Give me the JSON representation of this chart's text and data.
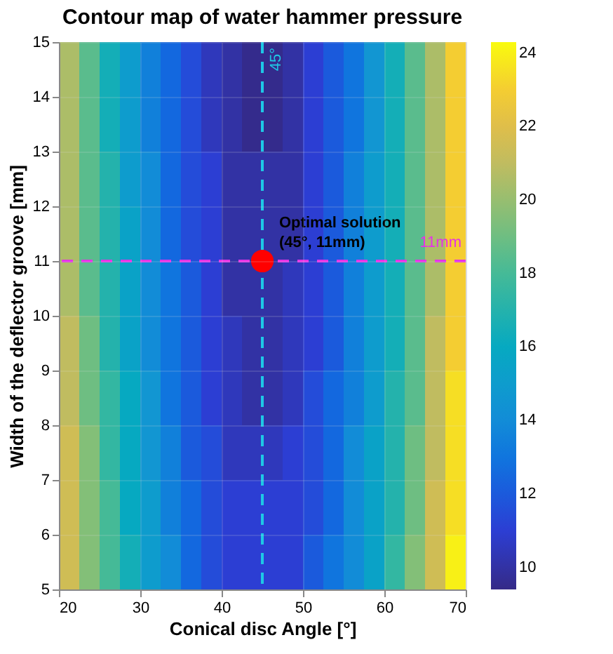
{
  "chart_data": {
    "type": "heatmap",
    "title": "Contour map of water hammer pressure",
    "xlabel": "Conical disc Angle [°]",
    "ylabel": "Width of the deflector groove [mm]",
    "xlim": [
      20,
      70
    ],
    "xticks": [
      20,
      30,
      40,
      50,
      60,
      70
    ],
    "ylim": [
      5,
      15
    ],
    "yticks": [
      5,
      6,
      7,
      8,
      9,
      10,
      11,
      12,
      13,
      14,
      15
    ],
    "grid": true,
    "legend": "right",
    "clim": [
      9.4,
      24.3
    ],
    "cticks": [
      10,
      12,
      14,
      16,
      18,
      20,
      22,
      24
    ],
    "cells": [
      [
        20.5,
        18.5,
        16.5,
        15,
        13.5,
        12.5,
        11.5,
        10.5,
        10,
        9.5,
        9.5,
        10,
        11,
        12,
        13,
        14.5,
        16.5,
        18.5,
        20.5,
        23
      ],
      [
        20.5,
        18.5,
        16.5,
        15,
        13.5,
        12.5,
        11.5,
        10.5,
        10,
        9.5,
        9.5,
        10,
        11,
        12,
        13,
        14.5,
        16.5,
        18.5,
        20.5,
        23
      ],
      [
        20.5,
        18.5,
        17,
        15,
        14,
        12.5,
        11.5,
        11,
        10,
        10,
        10,
        10,
        11,
        12,
        13.5,
        15,
        16.5,
        18.5,
        20.5,
        23
      ],
      [
        20.5,
        18.5,
        17,
        15.5,
        14,
        12.5,
        11.5,
        11,
        10,
        10,
        10,
        10,
        11,
        12,
        13.5,
        15,
        16.5,
        18.5,
        20.5,
        23
      ],
      [
        20.5,
        18.5,
        17,
        15.5,
        14,
        13,
        12,
        11,
        10,
        10,
        10,
        10.5,
        11,
        12,
        13.5,
        15,
        16.5,
        18.5,
        20.5,
        23
      ],
      [
        21,
        19,
        17,
        15.5,
        14,
        13,
        12,
        11,
        10.5,
        10,
        10,
        10.5,
        11,
        12,
        13.5,
        15,
        16.5,
        18.5,
        21,
        23
      ],
      [
        21,
        19,
        17.5,
        16,
        14.5,
        13,
        12,
        11,
        10.5,
        10,
        10,
        10.5,
        11.5,
        12.5,
        13.5,
        15,
        17,
        18.5,
        21,
        23.5
      ],
      [
        21.5,
        19.5,
        17.5,
        16,
        14.5,
        13.5,
        12,
        11.5,
        10.5,
        10.5,
        10.5,
        11,
        11.5,
        12.5,
        14,
        15.5,
        17,
        19,
        21,
        23.5
      ],
      [
        21.5,
        19.5,
        18,
        16,
        15,
        13.5,
        12.5,
        11.5,
        11,
        11,
        11,
        11,
        11.5,
        12.5,
        14,
        15.5,
        17,
        19,
        21.5,
        23.5
      ],
      [
        21.5,
        19.5,
        18,
        16.5,
        15,
        14,
        12.5,
        11.5,
        11,
        11,
        11,
        11,
        12,
        13,
        14,
        15.5,
        17.5,
        19.5,
        21.5,
        24
      ]
    ],
    "ref_lines": [
      {
        "axis": "x",
        "value": 45,
        "label": "45°",
        "color": "#1ec8e6",
        "line_style": "dashed"
      },
      {
        "axis": "y",
        "value": 11,
        "label": "11mm",
        "color": "#e632e6",
        "line_style": "dashed"
      }
    ],
    "annotations": [
      {
        "text": "Optimal solution\n(45°, 11mm)",
        "x": 45,
        "y": 11
      }
    ],
    "series": [
      {
        "type": "scatter",
        "x": [
          45
        ],
        "values": [
          11
        ],
        "color": "#ff0000",
        "marker": "circle"
      }
    ]
  }
}
